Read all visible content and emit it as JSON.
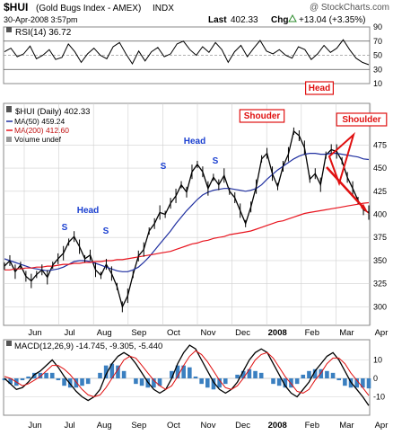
{
  "header": {
    "symbol": "$HUI",
    "name": "(Gold Bugs Index - AMEX)",
    "exchange": "INDX",
    "watermark": "@ StockCharts.com",
    "datetime": "30-Apr-2008 3:57pm",
    "last_label": "Last",
    "last_value": "402.33",
    "chg_label": "Chg",
    "chg_value": "+13.04 (+3.35%)",
    "chg_arrow": "up-triangle-icon"
  },
  "colors": {
    "price": "#000000",
    "ma50": "#1f2fa0",
    "ma200": "#e8141e",
    "annotation_blue": "#1a3fd0",
    "annotation_red": "#e01010",
    "volume": "#6b7d8f",
    "macd_hist": "#3a7fc0",
    "grid": "#d0d0d0"
  },
  "chart_data": [
    {
      "type": "line",
      "panel": "RSI",
      "label": "RSI(14) 36.72",
      "ylim": [
        10,
        90
      ],
      "yticks": [
        90,
        70,
        50,
        30,
        10
      ],
      "reference_lines": [
        70,
        50,
        30
      ],
      "values": [
        55,
        60,
        48,
        52,
        63,
        45,
        50,
        58,
        44,
        47,
        66,
        55,
        40,
        52,
        60,
        50,
        45,
        62,
        68,
        52,
        38,
        56,
        42,
        55,
        61,
        48,
        52,
        66,
        70,
        58,
        50,
        62,
        54,
        68,
        58,
        40,
        55,
        64,
        48,
        60,
        71,
        56,
        52,
        58,
        50,
        46,
        62,
        58,
        44,
        52,
        64,
        54,
        60,
        72,
        58,
        46,
        40,
        36.72
      ]
    },
    {
      "type": "line",
      "panel": "Price",
      "label": "$HUI (Daily) 402.33",
      "ylim": [
        280,
        520
      ],
      "yticks": [
        475,
        450,
        425,
        400,
        375,
        350,
        325,
        300
      ],
      "xlabels": [
        "Jun",
        "Jul",
        "Aug",
        "Sep",
        "Oct",
        "Nov",
        "Dec",
        "2008",
        "Feb",
        "Mar",
        "Apr"
      ],
      "series": [
        {
          "name": "$HUI (Daily) 402.33",
          "values": [
            344,
            350,
            338,
            345,
            333,
            328,
            335,
            340,
            332,
            345,
            352,
            358,
            370,
            376,
            365,
            352,
            356,
            340,
            334,
            346,
            336,
            322,
            300,
            312,
            335,
            355,
            362,
            382,
            390,
            402,
            400,
            412,
            420,
            432,
            424,
            446,
            454,
            446,
            428,
            440,
            432,
            442,
            425,
            418,
            404,
            390,
            408,
            430,
            460,
            466,
            444,
            430,
            452,
            465,
            490,
            485,
            472,
            438,
            444,
            432,
            464,
            470,
            468,
            458,
            440,
            428,
            415,
            405,
            402
          ]
        },
        {
          "name": "MA(50) 459.24",
          "values": [
            352,
            350,
            348,
            346,
            344,
            342,
            341,
            340,
            339,
            340,
            341,
            343,
            346,
            349,
            350,
            350,
            349,
            347,
            345,
            343,
            341,
            339,
            338,
            338,
            340,
            343,
            348,
            354,
            361,
            368,
            375,
            382,
            390,
            397,
            404,
            410,
            416,
            421,
            424,
            426,
            427,
            428,
            428,
            427,
            426,
            425,
            426,
            428,
            432,
            438,
            443,
            448,
            452,
            456,
            460,
            463,
            465,
            466,
            466,
            465,
            465,
            466,
            466,
            465,
            464,
            463,
            462,
            460,
            459.24
          ]
        },
        {
          "name": "MA(200) 412.60",
          "values": [
            340,
            340,
            341,
            341,
            342,
            342,
            343,
            343,
            344,
            344,
            345,
            346,
            346,
            347,
            347,
            348,
            348,
            349,
            349,
            350,
            350,
            351,
            351,
            352,
            353,
            354,
            355,
            356,
            357,
            358,
            359,
            360,
            362,
            364,
            366,
            368,
            369,
            371,
            372,
            374,
            375,
            376,
            378,
            379,
            380,
            381,
            382,
            384,
            386,
            388,
            390,
            392,
            393,
            395,
            397,
            399,
            401,
            402,
            403,
            404,
            405,
            406,
            407,
            408,
            409,
            410,
            411,
            412,
            412.6
          ]
        }
      ],
      "legend": [
        "$HUI (Daily) 402.33",
        "MA(50) 459.24",
        "MA(200) 412.60",
        "Volume undef"
      ],
      "annotations": [
        "S",
        "Head",
        "S",
        "S",
        "Head",
        "S",
        "Shouder",
        "Head",
        "Shoulder"
      ]
    },
    {
      "type": "line",
      "panel": "MACD",
      "label": "MACD(12,26,9) -14.745, -9.305, -5.440",
      "ylim": [
        -20,
        20
      ],
      "yticks": [
        10,
        0,
        -10
      ],
      "series": [
        {
          "name": "MACD",
          "values": [
            0,
            -3,
            -6,
            -5,
            -2,
            2,
            4,
            7,
            10,
            6,
            1,
            -3,
            -7,
            -10,
            -12,
            -10,
            -6,
            2,
            8,
            12,
            14,
            12,
            8,
            3,
            -2,
            -6,
            -8,
            -6,
            0,
            8,
            14,
            18,
            16,
            10,
            4,
            -2,
            -6,
            -8,
            -6,
            -2,
            4,
            10,
            14,
            16,
            14,
            8,
            2,
            -4,
            -8,
            -10,
            -6,
            -2,
            4,
            8,
            12,
            14,
            10,
            4,
            -2,
            -6,
            -10,
            -14.745
          ]
        },
        {
          "name": "Signal",
          "values": [
            1,
            0,
            -2,
            -4,
            -3,
            -1,
            1,
            4,
            7,
            7,
            5,
            2,
            -2,
            -6,
            -9,
            -10,
            -9,
            -5,
            0,
            5,
            10,
            12,
            11,
            7,
            3,
            -1,
            -4,
            -6,
            -4,
            1,
            7,
            12,
            15,
            13,
            9,
            4,
            -1,
            -5,
            -6,
            -4,
            0,
            5,
            10,
            13,
            14,
            11,
            6,
            1,
            -3,
            -7,
            -8,
            -6,
            -1,
            3,
            8,
            11,
            11,
            8,
            3,
            -1,
            -5,
            -9.305
          ]
        },
        {
          "name": "Histogram",
          "values": [
            -1,
            -3,
            -4,
            -1,
            1,
            3,
            3,
            3,
            3,
            -1,
            -4,
            -5,
            -5,
            -4,
            -3,
            0,
            3,
            7,
            8,
            7,
            4,
            0,
            -3,
            -4,
            -5,
            -5,
            -4,
            0,
            4,
            7,
            7,
            6,
            1,
            -3,
            -5,
            -6,
            -5,
            -3,
            0,
            2,
            4,
            5,
            4,
            3,
            0,
            -3,
            -4,
            -5,
            -5,
            -3,
            2,
            4,
            5,
            5,
            4,
            3,
            -1,
            -4,
            -5,
            -5,
            -5,
            -5.44
          ]
        }
      ]
    }
  ]
}
